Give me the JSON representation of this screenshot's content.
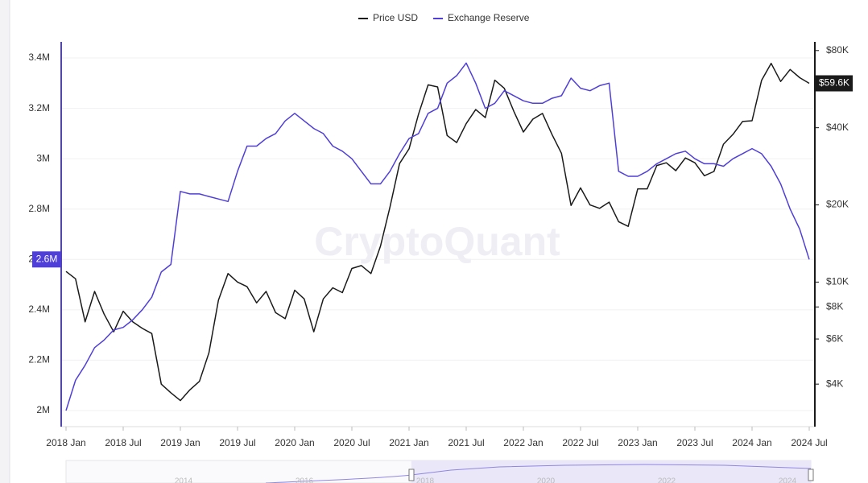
{
  "chart_data": {
    "type": "line",
    "watermark": "CryptoQuant",
    "categories": [
      "2018 Jan",
      null,
      null,
      null,
      null,
      null,
      "2018 Jul",
      null,
      null,
      null,
      null,
      null,
      "2019 Jan",
      null,
      null,
      null,
      null,
      null,
      "2019 Jul",
      null,
      null,
      null,
      null,
      null,
      "2020 Jan",
      null,
      null,
      null,
      null,
      null,
      "2020 Jul",
      null,
      null,
      null,
      null,
      null,
      "2021 Jan",
      null,
      null,
      null,
      null,
      null,
      "2021 Jul",
      null,
      null,
      null,
      null,
      null,
      "2022 Jan",
      null,
      null,
      null,
      null,
      null,
      "2022 Jul",
      null,
      null,
      null,
      null,
      null,
      "2023 Jan",
      null,
      null,
      null,
      null,
      null,
      "2023 Jul",
      null,
      null,
      null,
      null,
      null,
      "2024 Jan",
      null,
      null,
      null,
      null,
      null,
      "2024 Jul"
    ],
    "series": [
      {
        "name": "Price USD",
        "color": "#1a1a1a",
        "axis": "y2",
        "end_label": "$59.6K",
        "values": [
          11000,
          10300,
          7000,
          9200,
          7500,
          6400,
          7700,
          7000,
          6600,
          6300,
          4000,
          3700,
          3450,
          3800,
          4100,
          5300,
          8500,
          10800,
          10000,
          9600,
          8300,
          9200,
          7600,
          7200,
          9300,
          8600,
          6400,
          8600,
          9500,
          9100,
          11300,
          11600,
          10800,
          13800,
          19600,
          29000,
          33100,
          45200,
          58800,
          57700,
          37300,
          35000,
          41500,
          47100,
          43800,
          61300,
          57000,
          46300,
          38500,
          43200,
          45500,
          37700,
          31800,
          19900,
          23300,
          20000,
          19400,
          20500,
          17200,
          16500,
          23100,
          23100,
          28500,
          29200,
          27200,
          30500,
          29200,
          26000,
          27000,
          34500,
          37700,
          42300,
          42600,
          61200,
          71300,
          60600,
          67500,
          62700,
          59600
        ]
      },
      {
        "name": "Exchange Reserve",
        "color": "#4f3fd8",
        "end_label": "2.6M",
        "values": [
          2000000,
          2120000,
          2180000,
          2250000,
          2280000,
          2320000,
          2330000,
          2360000,
          2400000,
          2450000,
          2550000,
          2580000,
          2870000,
          2860000,
          2860000,
          2850000,
          2840000,
          2830000,
          2950000,
          3050000,
          3050000,
          3080000,
          3100000,
          3150000,
          3180000,
          3150000,
          3120000,
          3100000,
          3050000,
          3030000,
          3000000,
          2950000,
          2900000,
          2900000,
          2950000,
          3020000,
          3080000,
          3100000,
          3180000,
          3200000,
          3300000,
          3330000,
          3380000,
          3300000,
          3200000,
          3220000,
          3270000,
          3250000,
          3230000,
          3220000,
          3220000,
          3240000,
          3250000,
          3320000,
          3280000,
          3270000,
          3290000,
          3300000,
          2950000,
          2930000,
          2930000,
          2950000,
          2980000,
          3000000,
          3020000,
          3030000,
          3000000,
          2980000,
          2980000,
          2970000,
          3000000,
          3020000,
          3040000,
          3020000,
          2970000,
          2900000,
          2800000,
          2720000,
          2600000
        ]
      }
    ],
    "ylim": [
      1936000,
      3464000
    ],
    "yticks": [
      {
        "value": 2000000,
        "label": "2M"
      },
      {
        "value": 2200000,
        "label": "2.2M"
      },
      {
        "value": 2400000,
        "label": "2.4M"
      },
      {
        "value": 2600000,
        "label": "2.6M"
      },
      {
        "value": 2800000,
        "label": "2.8M"
      },
      {
        "value": 3000000,
        "label": "3M"
      },
      {
        "value": 3200000,
        "label": "3.2M"
      },
      {
        "value": 3400000,
        "label": "3.4M"
      }
    ],
    "y2lim": [
      2730,
      86500
    ],
    "y2log": true,
    "y2ticks": [
      {
        "value": 4000,
        "label": "$4K"
      },
      {
        "value": 6000,
        "label": "$6K"
      },
      {
        "value": 8000,
        "label": "$8K"
      },
      {
        "value": 10000,
        "label": "$10K"
      },
      {
        "value": 20000,
        "label": "$20K"
      },
      {
        "value": 40000,
        "label": "$40K"
      },
      {
        "value": 80000,
        "label": "$80K"
      }
    ],
    "grid": true,
    "navigator_labels": [
      "2014",
      "2016",
      "2018",
      "2020",
      "2022",
      "2024"
    ]
  }
}
